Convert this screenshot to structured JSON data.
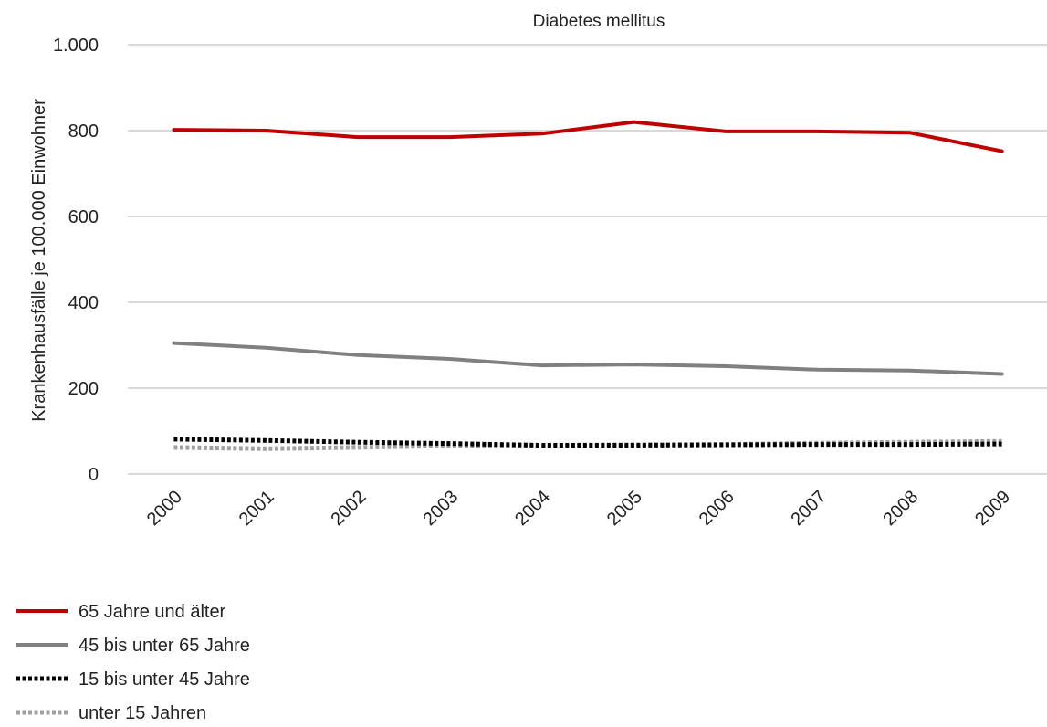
{
  "chart_data": {
    "type": "line",
    "title": "Diabetes mellitus",
    "xlabel": "",
    "ylabel": "Krankenhausfälle je 100.000 Einwohner",
    "x": [
      "2000",
      "2001",
      "2002",
      "2003",
      "2004",
      "2005",
      "2006",
      "2007",
      "2008",
      "2009"
    ],
    "ylim": [
      0,
      1000
    ],
    "yticks": [
      0,
      200,
      400,
      600,
      800,
      1000
    ],
    "ytick_labels": [
      "0",
      "200",
      "400",
      "600",
      "800",
      "1.000"
    ],
    "grid": true,
    "legend_position": "bottom-left",
    "series": [
      {
        "name": "65 Jahre und älter",
        "values": [
          802,
          800,
          785,
          785,
          793,
          820,
          798,
          798,
          795,
          752
        ],
        "color": "#c00000",
        "style": "solid"
      },
      {
        "name": "45 bis unter 65 Jahre",
        "values": [
          305,
          294,
          277,
          268,
          253,
          255,
          251,
          243,
          241,
          233
        ],
        "color": "#808080",
        "style": "solid"
      },
      {
        "name": "15 bis unter 45 Jahre",
        "values": [
          81,
          78,
          74,
          71,
          67,
          67,
          68,
          69,
          69,
          70
        ],
        "color": "#000000",
        "style": "dotted"
      },
      {
        "name": "unter 15 Jahren",
        "values": [
          62,
          59,
          62,
          66,
          67,
          68,
          69,
          72,
          74,
          76
        ],
        "color": "#a0a0a0",
        "style": "dotted"
      }
    ]
  }
}
